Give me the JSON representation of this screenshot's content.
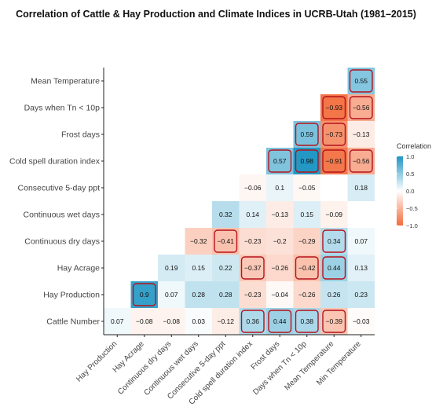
{
  "chart_data": {
    "type": "heatmap",
    "title": "Correlation of Cattle & Hay Production and Climate Indices in UCRB-Utah (1981–2015)",
    "rows": [
      "Mean Temperature",
      "Days when Tn < 10p",
      "Frost days",
      "Cold spell duration index",
      "Consecutive 5-day ppt",
      "Continuous wet days",
      "Continuous dry days",
      "Hay Acrage",
      "Hay Production",
      "Cattle Number"
    ],
    "columns": [
      "Hay Production",
      "Hay Acrage",
      "Continuous dry days",
      "Continuous wet days",
      "Consecutive 5-day ppt",
      "Cold spell duration index",
      "Frost days",
      "Days when Tn < 10p",
      "Mean Temperature",
      "Min Temperature"
    ],
    "values": [
      [
        null,
        null,
        null,
        null,
        null,
        null,
        null,
        null,
        null,
        0.55
      ],
      [
        null,
        null,
        null,
        null,
        null,
        null,
        null,
        null,
        -0.93,
        -0.56
      ],
      [
        null,
        null,
        null,
        null,
        null,
        null,
        null,
        0.59,
        -0.73,
        -0.13
      ],
      [
        null,
        null,
        null,
        null,
        null,
        null,
        0.57,
        0.98,
        -0.91,
        -0.56
      ],
      [
        null,
        null,
        null,
        null,
        null,
        -0.06,
        0.1,
        -0.05,
        0.0,
        0.18
      ],
      [
        null,
        null,
        null,
        null,
        0.32,
        0.14,
        -0.13,
        0.15,
        -0.09,
        0.0
      ],
      [
        null,
        null,
        null,
        -0.32,
        -0.41,
        -0.23,
        -0.2,
        -0.29,
        0.34,
        0.07
      ],
      [
        null,
        null,
        0.19,
        0.15,
        0.22,
        -0.37,
        -0.26,
        -0.42,
        0.44,
        0.13
      ],
      [
        null,
        0.9,
        0.07,
        0.28,
        0.28,
        -0.23,
        -0.04,
        -0.26,
        0.26,
        0.23
      ],
      [
        0.07,
        -0.08,
        -0.08,
        0.03,
        -0.12,
        0.36,
        0.44,
        0.38,
        -0.39,
        -0.03
      ]
    ],
    "labels": [
      [
        null,
        null,
        null,
        null,
        null,
        null,
        null,
        null,
        null,
        "0.55"
      ],
      [
        null,
        null,
        null,
        null,
        null,
        null,
        null,
        null,
        "−0.93",
        "−0.56"
      ],
      [
        null,
        null,
        null,
        null,
        null,
        null,
        null,
        "0.59",
        "−0.73",
        "−0.13"
      ],
      [
        null,
        null,
        null,
        null,
        null,
        null,
        "0.57",
        "0.98",
        "−0.91",
        "−0.56"
      ],
      [
        null,
        null,
        null,
        null,
        null,
        "−0.06",
        "0.1",
        "−0.05",
        "",
        "0.18"
      ],
      [
        null,
        null,
        null,
        null,
        "0.32",
        "0.14",
        "−0.13",
        "0.15",
        "−0.09",
        ""
      ],
      [
        null,
        null,
        null,
        "−0.32",
        "−0.41",
        "−0.23",
        "−0.2",
        "−0.29",
        "0.34",
        "0.07"
      ],
      [
        null,
        null,
        "0.19",
        "0.15",
        "0.22",
        "−0.37",
        "−0.26",
        "−0.42",
        "0.44",
        "0.13"
      ],
      [
        null,
        "0.9",
        "0.07",
        "0.28",
        "0.28",
        "−0.23",
        "−0.04",
        "−0.26",
        "0.26",
        "0.23"
      ],
      [
        "0.07",
        "−0.08",
        "−0.08",
        "0.03",
        "−0.12",
        "0.36",
        "0.44",
        "0.38",
        "−0.39",
        "−0.03"
      ]
    ],
    "significant": [
      [
        false,
        false,
        false,
        false,
        false,
        false,
        false,
        false,
        false,
        true
      ],
      [
        false,
        false,
        false,
        false,
        false,
        false,
        false,
        false,
        true,
        true
      ],
      [
        false,
        false,
        false,
        false,
        false,
        false,
        false,
        true,
        true,
        false
      ],
      [
        false,
        false,
        false,
        false,
        false,
        false,
        true,
        true,
        true,
        true
      ],
      [
        false,
        false,
        false,
        false,
        false,
        false,
        false,
        false,
        false,
        false
      ],
      [
        false,
        false,
        false,
        false,
        false,
        false,
        false,
        false,
        false,
        false
      ],
      [
        false,
        false,
        false,
        false,
        true,
        false,
        false,
        false,
        true,
        false
      ],
      [
        false,
        false,
        false,
        false,
        false,
        true,
        false,
        true,
        true,
        false
      ],
      [
        false,
        true,
        false,
        false,
        false,
        false,
        false,
        false,
        false,
        false
      ],
      [
        false,
        false,
        false,
        false,
        false,
        true,
        true,
        true,
        true,
        false
      ]
    ],
    "legend": {
      "title": "Correlation",
      "ticks": [
        1.0,
        0.5,
        0.0,
        -0.5,
        -1.0
      ],
      "tick_labels": [
        "1.0",
        "0.5",
        "0.0",
        "−0.5",
        "−1.0"
      ],
      "placement": "right"
    },
    "color_scale": {
      "negative": "#f26b3a",
      "mid": "#ffffff",
      "positive": "#1f96c4"
    },
    "significance_outline_color": "#b5121b",
    "range": [
      -1,
      1
    ]
  }
}
